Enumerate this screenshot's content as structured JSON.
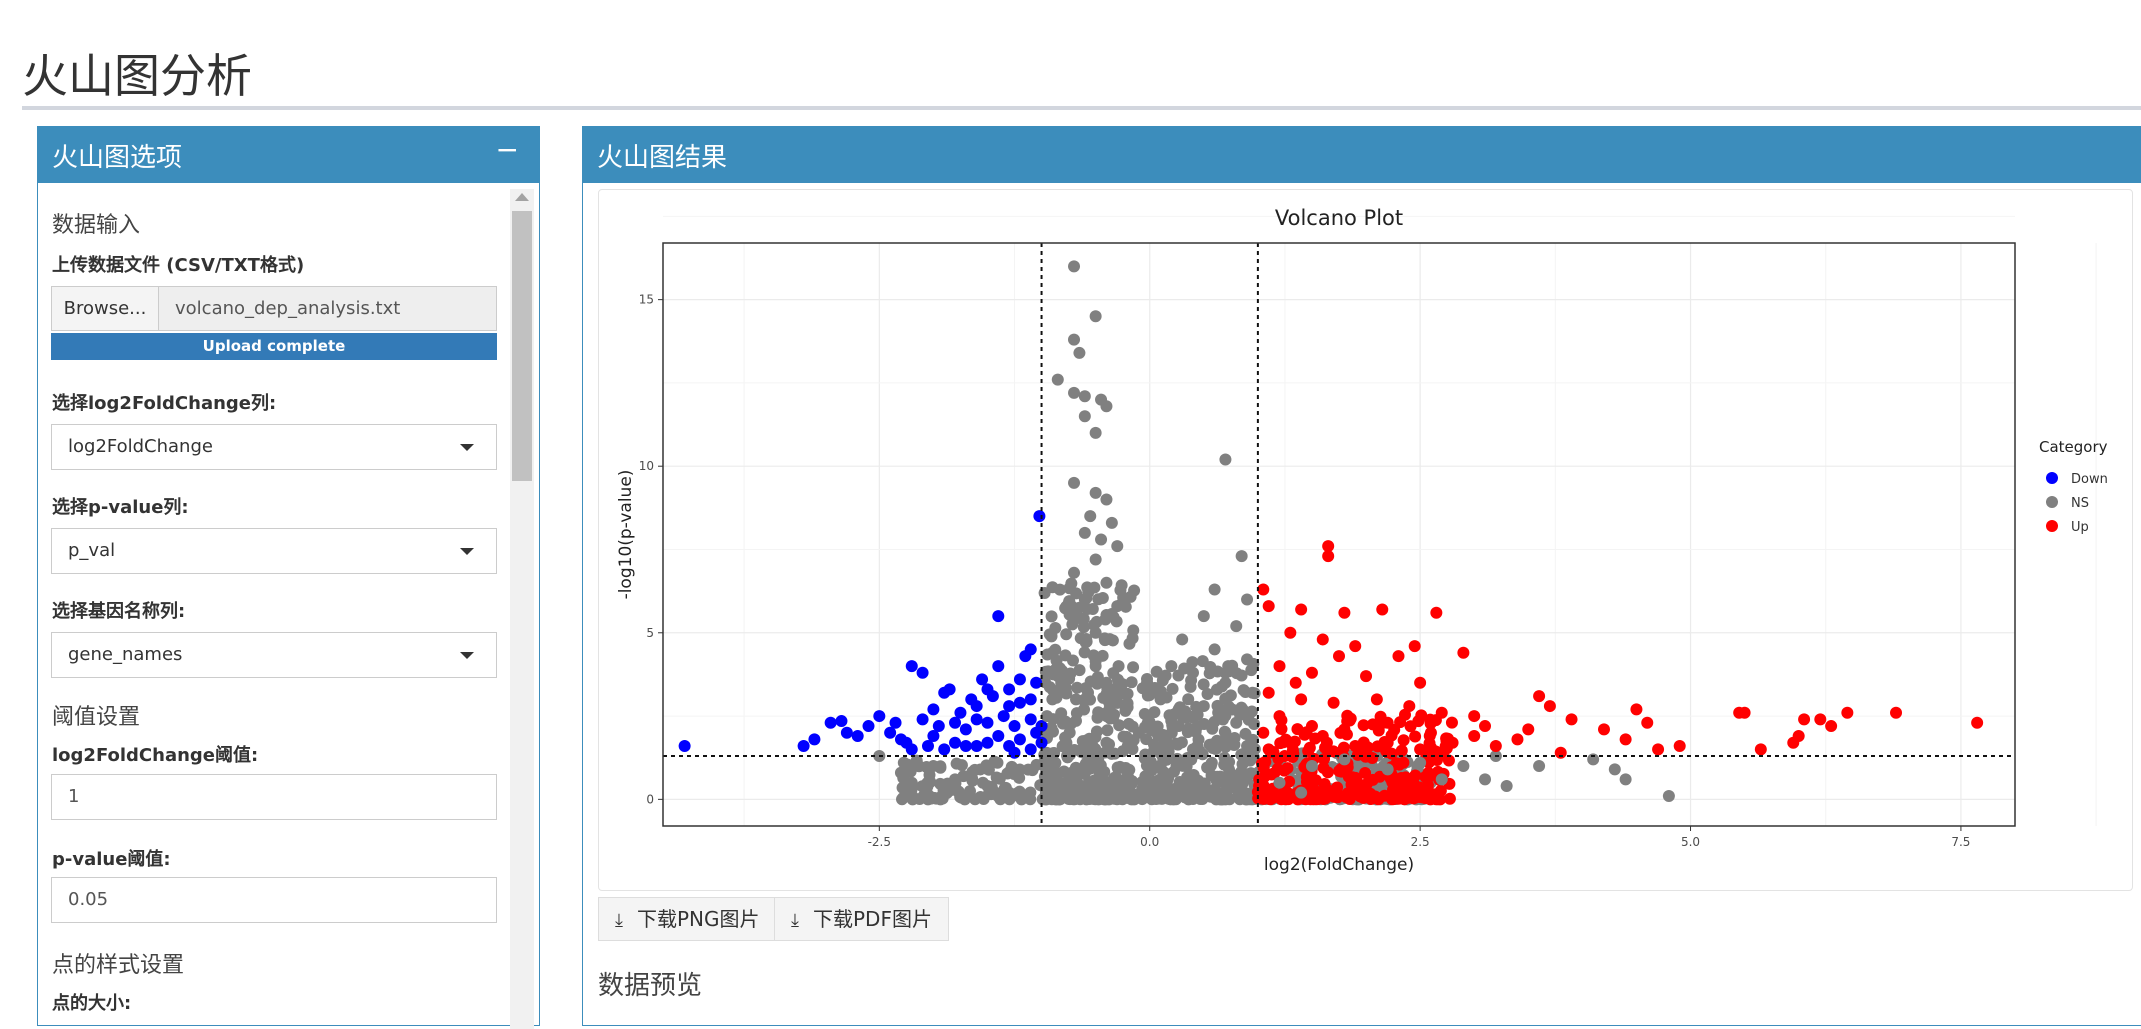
{
  "page": {
    "title": "火山图分析"
  },
  "sidebar": {
    "title": "火山图选项",
    "collapse_symbol": "−",
    "data_input_section": "数据输入",
    "upload_label": "上传数据文件 (CSV/TXT格式)",
    "browse_label": "Browse...",
    "file_name": "volcano_dep_analysis.txt",
    "upload_status": "Upload complete",
    "log2fc_col_label": "选择log2FoldChange列:",
    "log2fc_col_value": "log2FoldChange",
    "pval_col_label": "选择p-value列:",
    "pval_col_value": "p_val",
    "gene_col_label": "选择基因名称列:",
    "gene_col_value": "gene_names",
    "threshold_section": "阈值设置",
    "log2fc_threshold_label": "log2FoldChange阈值:",
    "log2fc_threshold_value": "1",
    "pval_threshold_label": "p-value阈值:",
    "pval_threshold_value": "0.05",
    "point_style_section": "点的样式设置",
    "point_size_label": "点的大小:"
  },
  "result": {
    "title": "火山图结果",
    "download_png": "下载PNG图片",
    "download_pdf": "下载PDF图片",
    "download_icon": "download-icon",
    "preview_title": "数据预览"
  },
  "colors": {
    "header": "#3c8dbc",
    "down": "#0000ff",
    "ns": "#808080",
    "up": "#ff0000"
  },
  "chart_data": {
    "type": "scatter",
    "title": "Volcano Plot",
    "xlabel": "log2(FoldChange)",
    "ylabel": "-log10(p-value)",
    "xlim": [
      -4.5,
      8.0
    ],
    "ylim": [
      -0.8,
      16.7
    ],
    "x_ticks": [
      "-2.5",
      "0.0",
      "2.5",
      "5.0",
      "7.5"
    ],
    "x_tick_values": [
      -2.5,
      0,
      2.5,
      5.0,
      7.5
    ],
    "y_ticks": [
      "0",
      "5",
      "10",
      "15"
    ],
    "y_tick_values": [
      0,
      5,
      10,
      15
    ],
    "threshold_lines": {
      "x": [
        -1,
        1
      ],
      "y": 1.3
    },
    "grid": true,
    "legend": {
      "title": "Category",
      "placement": "right",
      "entries": [
        "Down",
        "NS",
        "Up"
      ]
    },
    "series": [
      {
        "name": "Down",
        "points": [
          [
            -4.3,
            1.6
          ],
          [
            -3.2,
            1.6
          ],
          [
            -3.1,
            1.8
          ],
          [
            -2.95,
            2.3
          ],
          [
            -2.85,
            2.35
          ],
          [
            -2.8,
            2.0
          ],
          [
            -2.7,
            1.9
          ],
          [
            -2.6,
            2.2
          ],
          [
            -2.5,
            2.5
          ],
          [
            -2.4,
            2.0
          ],
          [
            -2.3,
            1.8
          ],
          [
            -2.25,
            1.7
          ],
          [
            -2.2,
            1.5
          ],
          [
            -2.2,
            4.0
          ],
          [
            -2.1,
            3.8
          ],
          [
            -2.1,
            2.4
          ],
          [
            -2.05,
            1.6
          ],
          [
            -2.0,
            1.9
          ],
          [
            -1.95,
            2.2
          ],
          [
            -1.9,
            1.5
          ],
          [
            -1.9,
            3.2
          ],
          [
            -1.85,
            3.3
          ],
          [
            -1.8,
            1.7
          ],
          [
            -1.75,
            2.6
          ],
          [
            -1.7,
            2.1
          ],
          [
            -1.65,
            3.0
          ],
          [
            -1.6,
            1.6
          ],
          [
            -1.6,
            2.8
          ],
          [
            -1.55,
            3.6
          ],
          [
            -1.5,
            2.3
          ],
          [
            -1.5,
            1.7
          ],
          [
            -1.45,
            3.1
          ],
          [
            -1.4,
            1.9
          ],
          [
            -1.4,
            4.0
          ],
          [
            -1.35,
            2.5
          ],
          [
            -1.3,
            1.6
          ],
          [
            -1.3,
            3.3
          ],
          [
            -1.25,
            2.2
          ],
          [
            -1.2,
            1.8
          ],
          [
            -1.2,
            2.9
          ],
          [
            -1.15,
            4.3
          ],
          [
            -1.1,
            2.4
          ],
          [
            -1.1,
            1.5
          ],
          [
            -1.05,
            3.5
          ],
          [
            -1.4,
            5.5
          ],
          [
            -1.02,
            8.5
          ],
          [
            -1.05,
            2.0
          ],
          [
            -1.1,
            3.0
          ],
          [
            -1.0,
            1.7
          ],
          [
            -1.0,
            2.2
          ],
          [
            -1.25,
            1.4
          ],
          [
            -1.6,
            2.4
          ],
          [
            -2.35,
            2.3
          ],
          [
            -2.0,
            2.7
          ],
          [
            -1.8,
            2.3
          ],
          [
            -1.7,
            1.6
          ],
          [
            -1.5,
            3.3
          ],
          [
            -1.3,
            2.8
          ],
          [
            -1.2,
            3.6
          ],
          [
            -1.1,
            4.5
          ]
        ]
      },
      {
        "name": "NS",
        "points": [
          [
            -0.7,
            16.0
          ],
          [
            -0.5,
            14.5
          ],
          [
            -0.7,
            13.8
          ],
          [
            -0.65,
            13.4
          ],
          [
            -0.85,
            12.6
          ],
          [
            -0.7,
            12.2
          ],
          [
            -0.6,
            12.1
          ],
          [
            -0.45,
            12.0
          ],
          [
            -0.4,
            11.8
          ],
          [
            -0.6,
            11.5
          ],
          [
            -0.5,
            11.0
          ],
          [
            0.7,
            10.2
          ],
          [
            -0.7,
            9.5
          ],
          [
            -0.5,
            9.2
          ],
          [
            -0.4,
            9.0
          ],
          [
            -0.55,
            8.5
          ],
          [
            -0.35,
            8.3
          ],
          [
            -0.6,
            8.0
          ],
          [
            -0.45,
            7.8
          ],
          [
            -0.3,
            7.6
          ],
          [
            -0.5,
            7.2
          ],
          [
            0.85,
            7.3
          ],
          [
            -0.7,
            6.8
          ],
          [
            -0.4,
            6.5
          ],
          [
            0.6,
            6.3
          ],
          [
            0.9,
            6.0
          ],
          [
            -0.6,
            6.0
          ],
          [
            -0.3,
            5.8
          ],
          [
            0.5,
            5.5
          ],
          [
            0.8,
            5.2
          ],
          [
            0.3,
            4.8
          ],
          [
            0.6,
            4.5
          ],
          [
            0.9,
            4.2
          ],
          [
            -0.9,
            4.4
          ],
          [
            0.2,
            4.0
          ],
          [
            0.4,
            3.8
          ],
          [
            0.7,
            3.5
          ],
          [
            0.95,
            3.2
          ],
          [
            0.1,
            3.0
          ],
          [
            0.5,
            2.8
          ],
          [
            0.3,
            2.5
          ],
          [
            0.8,
            2.3
          ],
          [
            -0.8,
            3.5
          ],
          [
            -0.9,
            3.0
          ],
          [
            -0.95,
            2.5
          ],
          [
            -0.1,
            2.0
          ],
          [
            0.15,
            1.8
          ],
          [
            1.5,
            1.0
          ],
          [
            1.8,
            1.2
          ],
          [
            2.2,
            0.9
          ],
          [
            2.5,
            1.1
          ],
          [
            2.9,
            1.0
          ],
          [
            3.1,
            0.6
          ],
          [
            3.3,
            0.4
          ],
          [
            3.6,
            1.0
          ],
          [
            4.1,
            1.2
          ],
          [
            4.3,
            0.9
          ],
          [
            4.4,
            0.6
          ],
          [
            4.8,
            0.1
          ],
          [
            -2.5,
            1.3
          ],
          [
            -2.3,
            0.8
          ],
          [
            -2.0,
            1.0
          ],
          [
            -1.8,
            0.6
          ],
          [
            -1.5,
            0.4
          ],
          [
            -1.3,
            0.2
          ],
          [
            -2.2,
            0.5
          ],
          [
            3.2,
            1.3
          ],
          [
            2.7,
            0.6
          ],
          [
            1.2,
            0.5
          ],
          [
            1.4,
            0.2
          ],
          [
            -0.5,
            5.0
          ],
          [
            -0.5,
            4.0
          ],
          [
            -0.4,
            3.5
          ],
          [
            -0.6,
            3.0
          ],
          [
            0.1,
            1.0
          ],
          [
            0.4,
            1.5
          ],
          [
            0.7,
            2.0
          ],
          [
            0.9,
            1.6
          ],
          [
            -0.2,
            0.5
          ],
          [
            -0.7,
            0.8
          ],
          [
            0.6,
            0.3
          ]
        ]
      },
      {
        "name": "Up",
        "points": [
          [
            1.65,
            7.6
          ],
          [
            1.65,
            7.3
          ],
          [
            1.05,
            6.3
          ],
          [
            1.1,
            5.8
          ],
          [
            1.4,
            5.7
          ],
          [
            1.8,
            5.6
          ],
          [
            2.15,
            5.7
          ],
          [
            2.65,
            5.6
          ],
          [
            1.3,
            5.0
          ],
          [
            1.6,
            4.8
          ],
          [
            1.9,
            4.6
          ],
          [
            2.3,
            4.3
          ],
          [
            2.9,
            4.4
          ],
          [
            1.2,
            4.0
          ],
          [
            1.5,
            3.8
          ],
          [
            2.0,
            3.7
          ],
          [
            2.5,
            3.5
          ],
          [
            1.1,
            3.2
          ],
          [
            1.4,
            3.0
          ],
          [
            1.7,
            2.9
          ],
          [
            2.1,
            3.0
          ],
          [
            2.4,
            2.8
          ],
          [
            2.7,
            2.6
          ],
          [
            3.0,
            2.5
          ],
          [
            1.2,
            2.5
          ],
          [
            1.5,
            2.2
          ],
          [
            1.8,
            2.1
          ],
          [
            2.2,
            2.3
          ],
          [
            2.6,
            2.0
          ],
          [
            3.0,
            1.9
          ],
          [
            3.4,
            1.8
          ],
          [
            3.6,
            3.1
          ],
          [
            3.7,
            2.8
          ],
          [
            3.9,
            2.4
          ],
          [
            3.5,
            2.1
          ],
          [
            3.2,
            1.6
          ],
          [
            3.8,
            1.4
          ],
          [
            4.2,
            2.1
          ],
          [
            4.4,
            1.8
          ],
          [
            4.5,
            2.7
          ],
          [
            4.6,
            2.3
          ],
          [
            4.7,
            1.5
          ],
          [
            4.9,
            1.6
          ],
          [
            5.45,
            2.6
          ],
          [
            5.5,
            2.6
          ],
          [
            5.65,
            1.5
          ],
          [
            5.95,
            1.7
          ],
          [
            6.0,
            1.9
          ],
          [
            6.05,
            2.4
          ],
          [
            6.2,
            2.4
          ],
          [
            6.3,
            2.2
          ],
          [
            6.45,
            2.6
          ],
          [
            6.9,
            2.6
          ],
          [
            7.65,
            2.3
          ],
          [
            1.1,
            1.5
          ],
          [
            1.3,
            1.7
          ],
          [
            1.6,
            1.9
          ],
          [
            1.9,
            1.6
          ],
          [
            2.2,
            1.7
          ],
          [
            2.5,
            1.5
          ],
          [
            2.8,
            1.7
          ],
          [
            3.1,
            2.2
          ],
          [
            1.05,
            2.0
          ],
          [
            1.35,
            3.5
          ],
          [
            1.75,
            4.3
          ],
          [
            2.45,
            4.6
          ]
        ]
      }
    ]
  }
}
